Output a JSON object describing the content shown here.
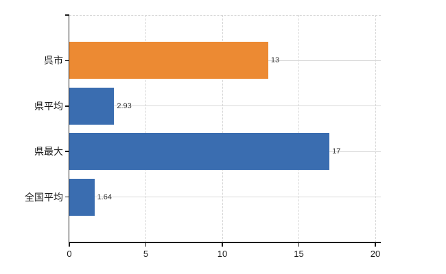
{
  "chart_data": {
    "type": "bar",
    "orientation": "horizontal",
    "categories": [
      "呉市",
      "県平均",
      "県最大",
      "全国平均"
    ],
    "values": [
      13,
      2.93,
      17,
      1.64
    ],
    "value_labels": [
      "13",
      "2.93",
      "17",
      "1.64"
    ],
    "bar_colors": [
      "#EC8A33",
      "#3A6DB0",
      "#3A6DB0",
      "#3A6DB0"
    ],
    "highlight_category": "呉市",
    "xlim": [
      0,
      20.35
    ],
    "xticks": [
      0,
      5,
      10,
      15,
      20
    ],
    "xtick_labels": [
      "0",
      "5",
      "10",
      "15",
      "20"
    ],
    "grid": true,
    "legend": false,
    "title": "",
    "xlabel": "",
    "ylabel": ""
  },
  "style": {
    "background": "#ffffff",
    "bar_blue": "#3A6DB0",
    "bar_orange": "#EC8A33",
    "grid_color": "#d9d9d9",
    "grid_dashed_color": "#d6d6d6",
    "axis_color": "#1a1a1a",
    "text_color": "#1a1a1a",
    "value_label_color": "#333333"
  }
}
